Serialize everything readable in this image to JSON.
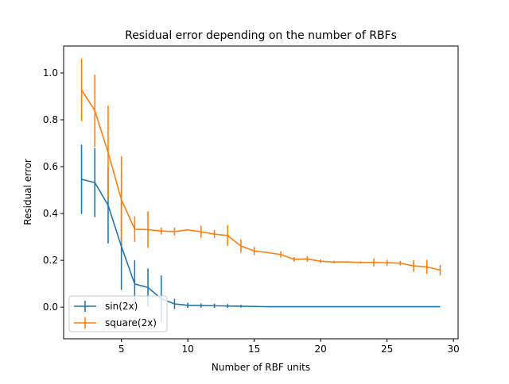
{
  "chart_data": {
    "type": "line",
    "title": "Residual error depending on the number of RBFs",
    "xlabel": "Number of RBF units",
    "ylabel": "Residual error",
    "xlim": [
      0.65,
      30.35
    ],
    "ylim": [
      -0.135,
      1.115
    ],
    "xticks": [
      5,
      10,
      15,
      20,
      25,
      30
    ],
    "yticks": [
      0.0,
      0.2,
      0.4,
      0.6,
      0.8,
      1.0
    ],
    "xtick_labels": [
      "5",
      "10",
      "15",
      "20",
      "25",
      "30"
    ],
    "ytick_labels": [
      "0.0",
      "0.2",
      "0.4",
      "0.6",
      "0.8",
      "1.0"
    ],
    "grid": false,
    "legend_position": "lower-left",
    "series": [
      {
        "name": "sin(2x)",
        "color": "#1f77b4",
        "x": [
          2,
          3,
          4,
          5,
          6,
          7,
          8,
          9,
          10,
          11,
          12,
          13,
          14,
          15,
          16,
          17,
          18,
          19,
          20,
          21,
          22,
          23,
          24,
          25,
          26,
          27,
          28,
          29
        ],
        "y": [
          0.546,
          0.532,
          0.435,
          0.259,
          0.099,
          0.084,
          0.036,
          0.014,
          0.008,
          0.007,
          0.006,
          0.005,
          0.004,
          0.003,
          0.002,
          0.002,
          0.002,
          0.002,
          0.002,
          0.002,
          0.002,
          0.002,
          0.002,
          0.002,
          0.002,
          0.002,
          0.002,
          0.002
        ],
        "err": [
          0.148,
          0.148,
          0.163,
          0.185,
          0.101,
          0.081,
          0.099,
          0.022,
          0.011,
          0.009,
          0.009,
          0.008,
          0.006,
          0.003,
          0.002,
          0,
          0,
          0,
          0,
          0,
          0,
          0,
          0,
          0,
          0,
          0,
          0,
          0
        ]
      },
      {
        "name": "square(2x)",
        "color": "#ff7f0e",
        "x": [
          2,
          3,
          4,
          5,
          6,
          7,
          8,
          9,
          10,
          11,
          12,
          13,
          14,
          15,
          16,
          17,
          18,
          19,
          20,
          21,
          22,
          23,
          24,
          25,
          26,
          27,
          28,
          29
        ],
        "y": [
          0.928,
          0.839,
          0.66,
          0.459,
          0.333,
          0.331,
          0.325,
          0.323,
          0.33,
          0.322,
          0.312,
          0.306,
          0.261,
          0.24,
          0.233,
          0.225,
          0.204,
          0.206,
          0.196,
          0.193,
          0.193,
          0.191,
          0.191,
          0.19,
          0.188,
          0.176,
          0.172,
          0.158
        ],
        "err": [
          0.134,
          0.154,
          0.2,
          0.185,
          0.055,
          0.078,
          0.015,
          0.017,
          0.003,
          0.025,
          0.017,
          0.045,
          0.028,
          0.017,
          0,
          0.013,
          0.01,
          0.012,
          0.008,
          0.005,
          0.003,
          0.005,
          0.017,
          0.013,
          0.01,
          0.025,
          0.03,
          0.022
        ]
      }
    ]
  }
}
